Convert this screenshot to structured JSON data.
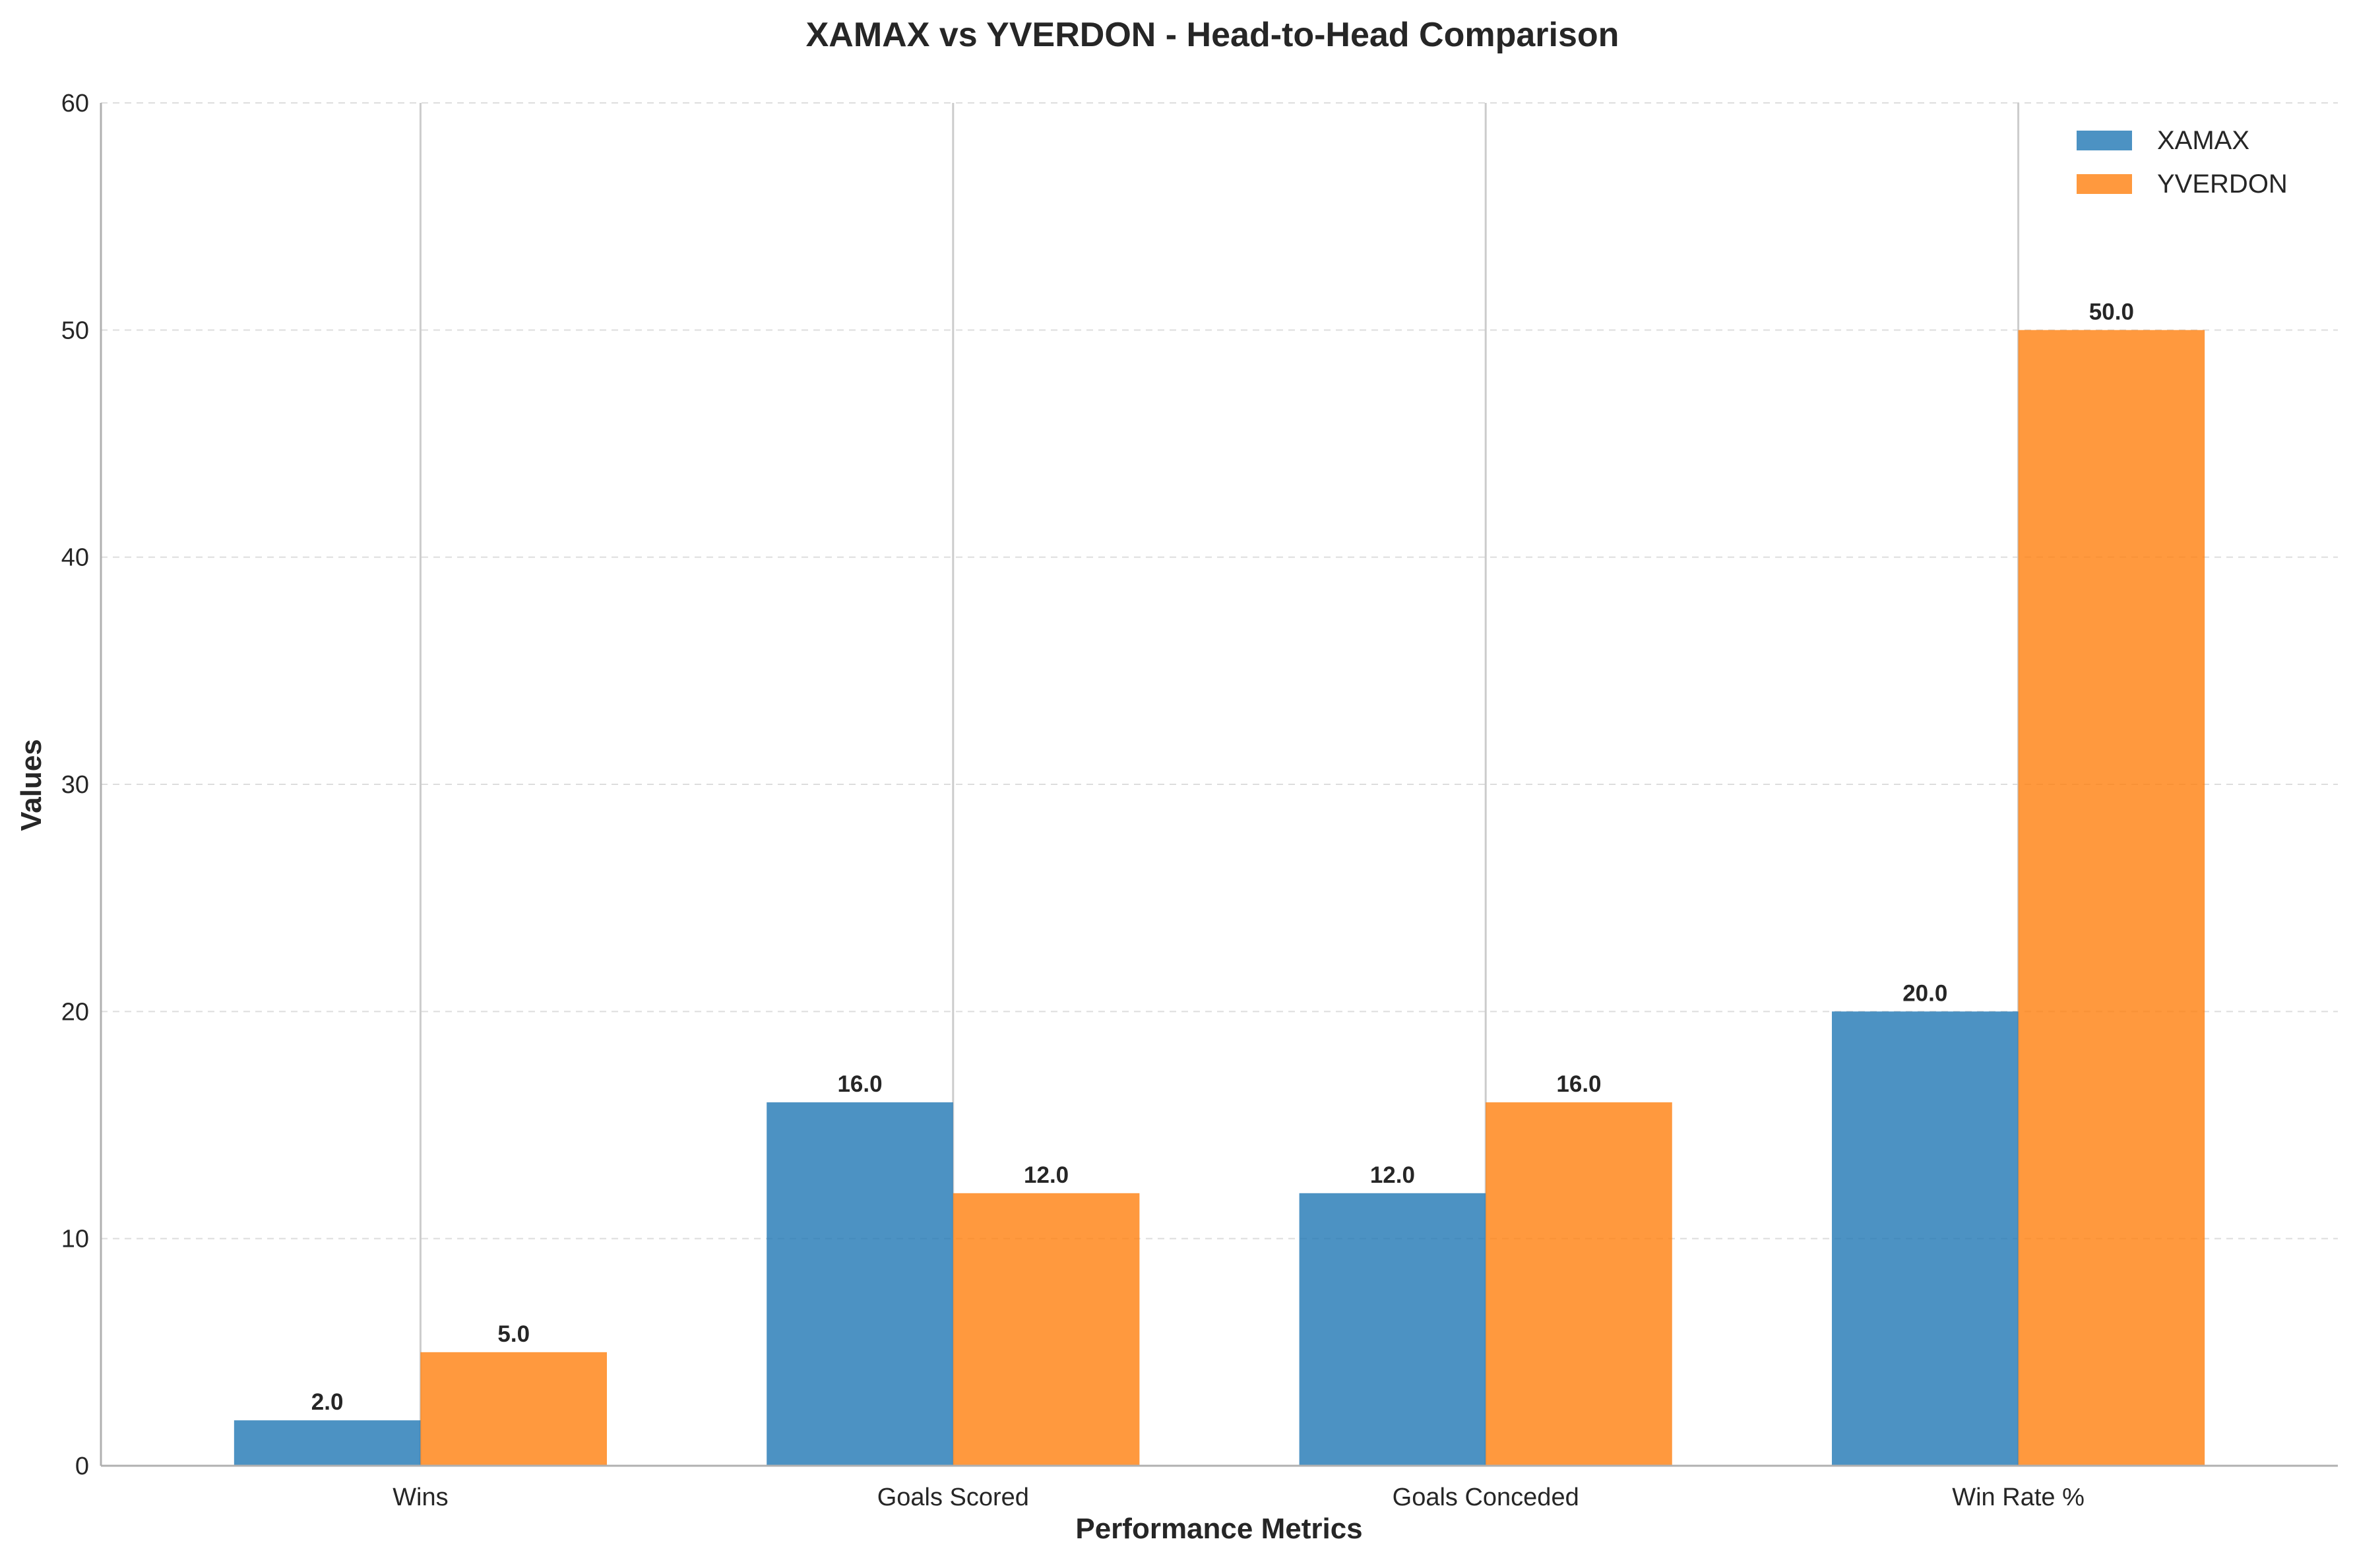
{
  "chart_data": {
    "type": "bar",
    "title": "XAMAX vs YVERDON - Head-to-Head Comparison",
    "xlabel": "Performance Metrics",
    "ylabel": "Values",
    "categories": [
      "Wins",
      "Goals Scored",
      "Goals Conceded",
      "Win Rate %"
    ],
    "series": [
      {
        "name": "XAMAX",
        "color": "#1f77b4",
        "values": [
          2.0,
          16.0,
          12.0,
          20.0
        ]
      },
      {
        "name": "YVERDON",
        "color": "#ff7f0e",
        "values": [
          5.0,
          12.0,
          16.0,
          50.0
        ]
      }
    ],
    "ylim": [
      0,
      60
    ],
    "yticks": [
      0,
      10,
      20,
      30,
      40,
      50,
      60
    ],
    "value_labels": {
      "XAMAX": [
        "2.0",
        "16.0",
        "12.0",
        "20.0"
      ],
      "YVERDON": [
        "5.0",
        "12.0",
        "16.0",
        "50.0"
      ]
    },
    "grid": "horizontal dashed",
    "legend_position": "top-right"
  }
}
